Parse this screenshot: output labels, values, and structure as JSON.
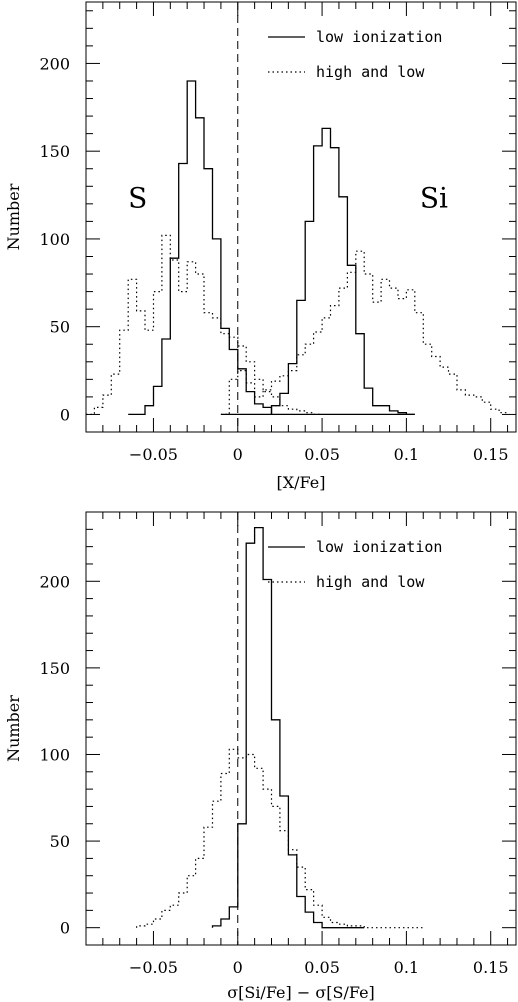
{
  "chart_data": [
    {
      "type": "step-histogram",
      "xlabel": "[X/Fe]",
      "ylabel": "Number",
      "xlim": [
        -0.09,
        0.165
      ],
      "ylim": [
        -10,
        235
      ],
      "xticks": [
        -0.05,
        0,
        0.05,
        0.1,
        0.15
      ],
      "xtick_labels": [
        "−0.05",
        "0",
        "0.05",
        "0.1",
        "0.15"
      ],
      "yticks": [
        0,
        50,
        100,
        150,
        200
      ],
      "ytick_labels": [
        "0",
        "50",
        "100",
        "150",
        "200"
      ],
      "legend_position": "top-right",
      "legend": [
        {
          "label": "low ionization",
          "style": "solid"
        },
        {
          "label": "high and low",
          "style": "dotted"
        }
      ],
      "annotations": [
        {
          "text": "S",
          "x": -0.065,
          "y": 118
        },
        {
          "text": "Si",
          "x": 0.108,
          "y": 118
        }
      ],
      "zero_line": 0,
      "series": [
        {
          "style": "solid",
          "bin_width": 0.005,
          "x_start": -0.065,
          "values": [
            0,
            0,
            5,
            16,
            43,
            89,
            143,
            190,
            169,
            140,
            100,
            49,
            37,
            26,
            13,
            6,
            4,
            0,
            0,
            0,
            0,
            0,
            0,
            0,
            0,
            0,
            0,
            0,
            0,
            0,
            0,
            0,
            0,
            0
          ]
        },
        {
          "style": "solid",
          "bin_width": 0.005,
          "x_start": -0.01,
          "values": [
            0,
            0,
            0,
            0,
            0,
            0,
            5,
            12,
            29,
            65,
            110,
            153,
            163,
            152,
            124,
            85,
            46,
            15,
            5,
            5,
            2,
            1,
            0
          ]
        },
        {
          "style": "dotted",
          "bin_width": 0.005,
          "x_start": -0.09,
          "values": [
            0,
            4,
            11,
            23,
            48,
            77,
            59,
            48,
            70,
            102,
            88,
            70,
            87,
            80,
            58,
            55,
            46,
            44,
            39,
            30,
            20,
            13,
            10,
            5,
            3,
            2,
            1,
            0
          ]
        },
        {
          "style": "dotted",
          "bin_width": 0.005,
          "x_start": -0.01,
          "values": [
            0,
            20,
            25,
            18,
            10,
            14,
            19,
            22,
            25,
            34,
            40,
            47,
            55,
            62,
            72,
            81,
            93,
            80,
            64,
            77,
            72,
            66,
            71,
            58,
            40,
            33,
            27,
            23,
            14,
            11,
            10,
            7,
            3,
            1
          ]
        }
      ]
    },
    {
      "type": "step-histogram",
      "xlabel": "σ[Si/Fe] − σ[S/Fe]",
      "ylabel": "Number",
      "xlim": [
        -0.09,
        0.165
      ],
      "ylim": [
        -10,
        240
      ],
      "xticks": [
        -0.05,
        0,
        0.05,
        0.1,
        0.15
      ],
      "xtick_labels": [
        "−0.05",
        "0",
        "0.05",
        "0.1",
        "0.15"
      ],
      "yticks": [
        0,
        50,
        100,
        150,
        200
      ],
      "ytick_labels": [
        "0",
        "50",
        "100",
        "150",
        "200"
      ],
      "legend_position": "top-right",
      "legend": [
        {
          "label": "low ionization",
          "style": "solid"
        },
        {
          "label": "high and low",
          "style": "dotted"
        }
      ],
      "zero_line": 0,
      "series": [
        {
          "style": "solid",
          "bin_width": 0.005,
          "x_start": -0.015,
          "values": [
            1,
            5,
            12,
            60,
            222,
            231,
            201,
            120,
            76,
            42,
            18,
            9,
            3,
            0,
            0,
            0,
            0,
            0
          ]
        },
        {
          "style": "dotted",
          "bin_width": 0.005,
          "x_start": -0.06,
          "values": [
            1,
            2,
            5,
            10,
            13,
            20,
            30,
            40,
            58,
            73,
            89,
            103,
            98,
            100,
            92,
            80,
            70,
            56,
            45,
            35,
            22,
            13,
            6,
            3,
            2,
            1,
            1,
            0,
            0,
            0,
            0,
            0,
            0,
            0
          ]
        }
      ]
    }
  ]
}
